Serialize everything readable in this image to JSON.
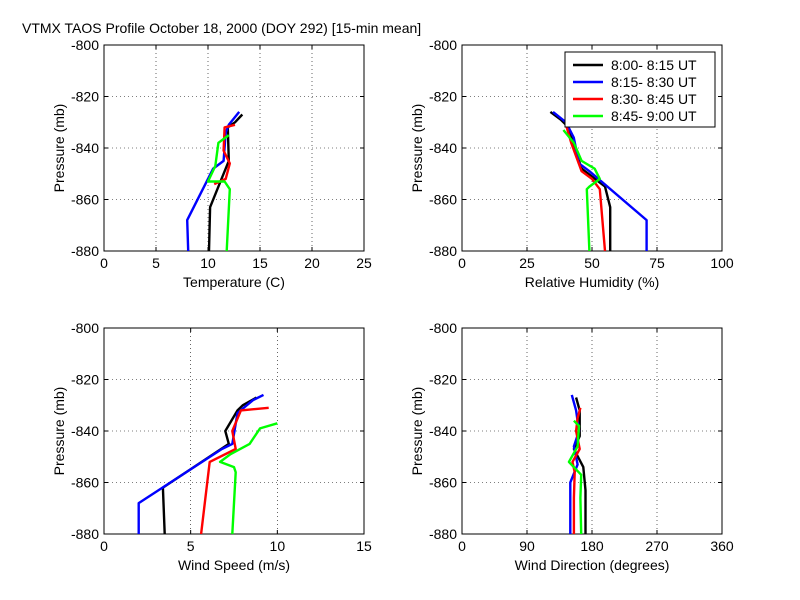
{
  "title": "VTMX TAOS Profile   October 18, 2000 (DOY 292) [15-min mean]",
  "legend": {
    "placement": "top-right of relative humidity panel",
    "entries": [
      {
        "label": "8:00- 8:15 UT",
        "color": "#000000"
      },
      {
        "label": "8:15- 8:30 UT",
        "color": "#0000ff"
      },
      {
        "label": "8:30- 8:45 UT",
        "color": "#ff0000"
      },
      {
        "label": "8:45- 9:00 UT",
        "color": "#00ff00"
      }
    ]
  },
  "chart_data": [
    {
      "type": "line",
      "xlabel": "Temperature (C)",
      "ylabel": "Pressure (mb)",
      "xlim": [
        0,
        25
      ],
      "ylim": [
        -880,
        -800
      ],
      "xticks": [
        "0",
        "5",
        "10",
        "15",
        "20",
        "25"
      ],
      "yticks": [
        "-800",
        "-820",
        "-840",
        "-860",
        "-880"
      ],
      "grid": true,
      "series": [
        {
          "name": "8:00- 8:15 UT",
          "color": "#000000",
          "points": [
            [
              13.3,
              -827
            ],
            [
              12.6,
              -830
            ],
            [
              11.9,
              -832
            ],
            [
              12.0,
              -845
            ],
            [
              11.3,
              -852
            ],
            [
              10.2,
              -863
            ],
            [
              10.1,
              -880
            ]
          ]
        },
        {
          "name": "8:15- 8:30 UT",
          "color": "#0000ff",
          "points": [
            [
              13.0,
              -826
            ],
            [
              12.0,
              -831
            ],
            [
              11.7,
              -834
            ],
            [
              11.5,
              -845
            ],
            [
              10.5,
              -848
            ],
            [
              8.0,
              -868
            ],
            [
              8.1,
              -880
            ]
          ]
        },
        {
          "name": "8:30- 8:45 UT",
          "color": "#ff0000",
          "points": [
            [
              12.6,
              -831
            ],
            [
              11.6,
              -832
            ],
            [
              11.5,
              -841
            ],
            [
              12.1,
              -846
            ],
            [
              11.7,
              -852
            ],
            [
              10.6,
              -854
            ]
          ]
        },
        {
          "name": "8:45- 9:00 UT",
          "color": "#00ff00",
          "points": [
            [
              12.0,
              -835
            ],
            [
              11.0,
              -838
            ],
            [
              10.7,
              -847
            ],
            [
              10.0,
              -853
            ],
            [
              11.6,
              -853
            ],
            [
              12.1,
              -856
            ],
            [
              11.8,
              -880
            ]
          ]
        }
      ]
    },
    {
      "type": "line",
      "xlabel": "Relative Humidity (%)",
      "ylabel": "Pressure (mb)",
      "xlim": [
        0,
        100
      ],
      "ylim": [
        -880,
        -800
      ],
      "xticks": [
        "0",
        "25",
        "50",
        "75",
        "100"
      ],
      "yticks": [
        "-800",
        "-820",
        "-840",
        "-860",
        "-880"
      ],
      "grid": true,
      "series": [
        {
          "name": "8:00- 8:15 UT",
          "color": "#000000",
          "points": [
            [
              34,
              -826
            ],
            [
              38,
              -829
            ],
            [
              41,
              -832
            ],
            [
              44,
              -842
            ],
            [
              46,
              -848
            ],
            [
              55,
              -855
            ],
            [
              57,
              -863
            ],
            [
              57,
              -880
            ]
          ]
        },
        {
          "name": "8:15- 8:30 UT",
          "color": "#0000ff",
          "points": [
            [
              35,
              -826
            ],
            [
              40,
              -830
            ],
            [
              43,
              -836
            ],
            [
              45,
              -846
            ],
            [
              49,
              -849
            ],
            [
              71,
              -868
            ],
            [
              71,
              -880
            ]
          ]
        },
        {
          "name": "8:30- 8:45 UT",
          "color": "#ff0000",
          "points": [
            [
              40,
              -831
            ],
            [
              42,
              -838
            ],
            [
              46,
              -849
            ],
            [
              50,
              -852
            ],
            [
              53,
              -856
            ],
            [
              55,
              -880
            ]
          ]
        },
        {
          "name": "8:45- 9:00 UT",
          "color": "#00ff00",
          "points": [
            [
              39,
              -833
            ],
            [
              43,
              -838
            ],
            [
              46,
              -845
            ],
            [
              51,
              -848
            ],
            [
              53,
              -852
            ],
            [
              49,
              -855
            ],
            [
              48,
              -856
            ],
            [
              49,
              -880
            ]
          ]
        }
      ]
    },
    {
      "type": "line",
      "xlabel": "Wind Speed (m/s)",
      "ylabel": "Pressure (mb)",
      "xlim": [
        0,
        15
      ],
      "ylim": [
        -880,
        -800
      ],
      "xticks": [
        "0",
        "5",
        "10",
        "15"
      ],
      "yticks": [
        "-800",
        "-820",
        "-840",
        "-860",
        "-880"
      ],
      "grid": true,
      "series": [
        {
          "name": "8:00- 8:15 UT",
          "color": "#000000",
          "points": [
            [
              8.8,
              -827
            ],
            [
              8.0,
              -830
            ],
            [
              7.7,
              -832
            ],
            [
              7.0,
              -840
            ],
            [
              7.2,
              -845
            ],
            [
              3.4,
              -862
            ],
            [
              3.5,
              -880
            ]
          ]
        },
        {
          "name": "8:15- 8:30 UT",
          "color": "#0000ff",
          "points": [
            [
              9.2,
              -826
            ],
            [
              8.6,
              -828
            ],
            [
              7.7,
              -833
            ],
            [
              7.4,
              -845
            ],
            [
              6.8,
              -847
            ],
            [
              2.0,
              -868
            ],
            [
              2.0,
              -880
            ]
          ]
        },
        {
          "name": "8:30- 8:45 UT",
          "color": "#ff0000",
          "points": [
            [
              9.5,
              -831
            ],
            [
              7.9,
              -832
            ],
            [
              7.4,
              -840
            ],
            [
              7.6,
              -847
            ],
            [
              6.1,
              -852
            ],
            [
              5.6,
              -880
            ]
          ]
        },
        {
          "name": "8:45- 9:00 UT",
          "color": "#00ff00",
          "points": [
            [
              10.0,
              -837
            ],
            [
              9.0,
              -839
            ],
            [
              8.4,
              -845
            ],
            [
              7.3,
              -849
            ],
            [
              6.7,
              -852
            ],
            [
              7.5,
              -854
            ],
            [
              7.6,
              -856
            ],
            [
              7.4,
              -880
            ]
          ]
        }
      ]
    },
    {
      "type": "line",
      "xlabel": "Wind Direction (degrees)",
      "ylabel": "Pressure (mb)",
      "xlim": [
        0,
        360
      ],
      "ylim": [
        -880,
        -800
      ],
      "xticks": [
        "0",
        "90",
        "180",
        "270",
        "360"
      ],
      "yticks": [
        "-800",
        "-820",
        "-840",
        "-860",
        "-880"
      ],
      "grid": true,
      "series": [
        {
          "name": "8:00- 8:15 UT",
          "color": "#000000",
          "points": [
            [
              158,
              -827
            ],
            [
              163,
              -832
            ],
            [
              163,
              -842
            ],
            [
              155,
              -847
            ],
            [
              168,
              -854
            ],
            [
              171,
              -863
            ],
            [
              171,
              -880
            ]
          ]
        },
        {
          "name": "8:15- 8:30 UT",
          "color": "#0000ff",
          "points": [
            [
              152,
              -826
            ],
            [
              158,
              -832
            ],
            [
              162,
              -840
            ],
            [
              155,
              -846
            ],
            [
              160,
              -853
            ],
            [
              150,
              -860
            ],
            [
              150,
              -880
            ]
          ]
        },
        {
          "name": "8:30- 8:45 UT",
          "color": "#ff0000",
          "points": [
            [
              164,
              -831
            ],
            [
              160,
              -835
            ],
            [
              158,
              -840
            ],
            [
              163,
              -847
            ],
            [
              153,
              -852
            ],
            [
              156,
              -856
            ],
            [
              155,
              -866
            ],
            [
              155,
              -880
            ]
          ]
        },
        {
          "name": "8:45- 9:00 UT",
          "color": "#00ff00",
          "points": [
            [
              155,
              -836
            ],
            [
              162,
              -838
            ],
            [
              160,
              -846
            ],
            [
              148,
              -852
            ],
            [
              165,
              -857
            ],
            [
              164,
              -866
            ],
            [
              165,
              -880
            ]
          ]
        }
      ]
    }
  ]
}
